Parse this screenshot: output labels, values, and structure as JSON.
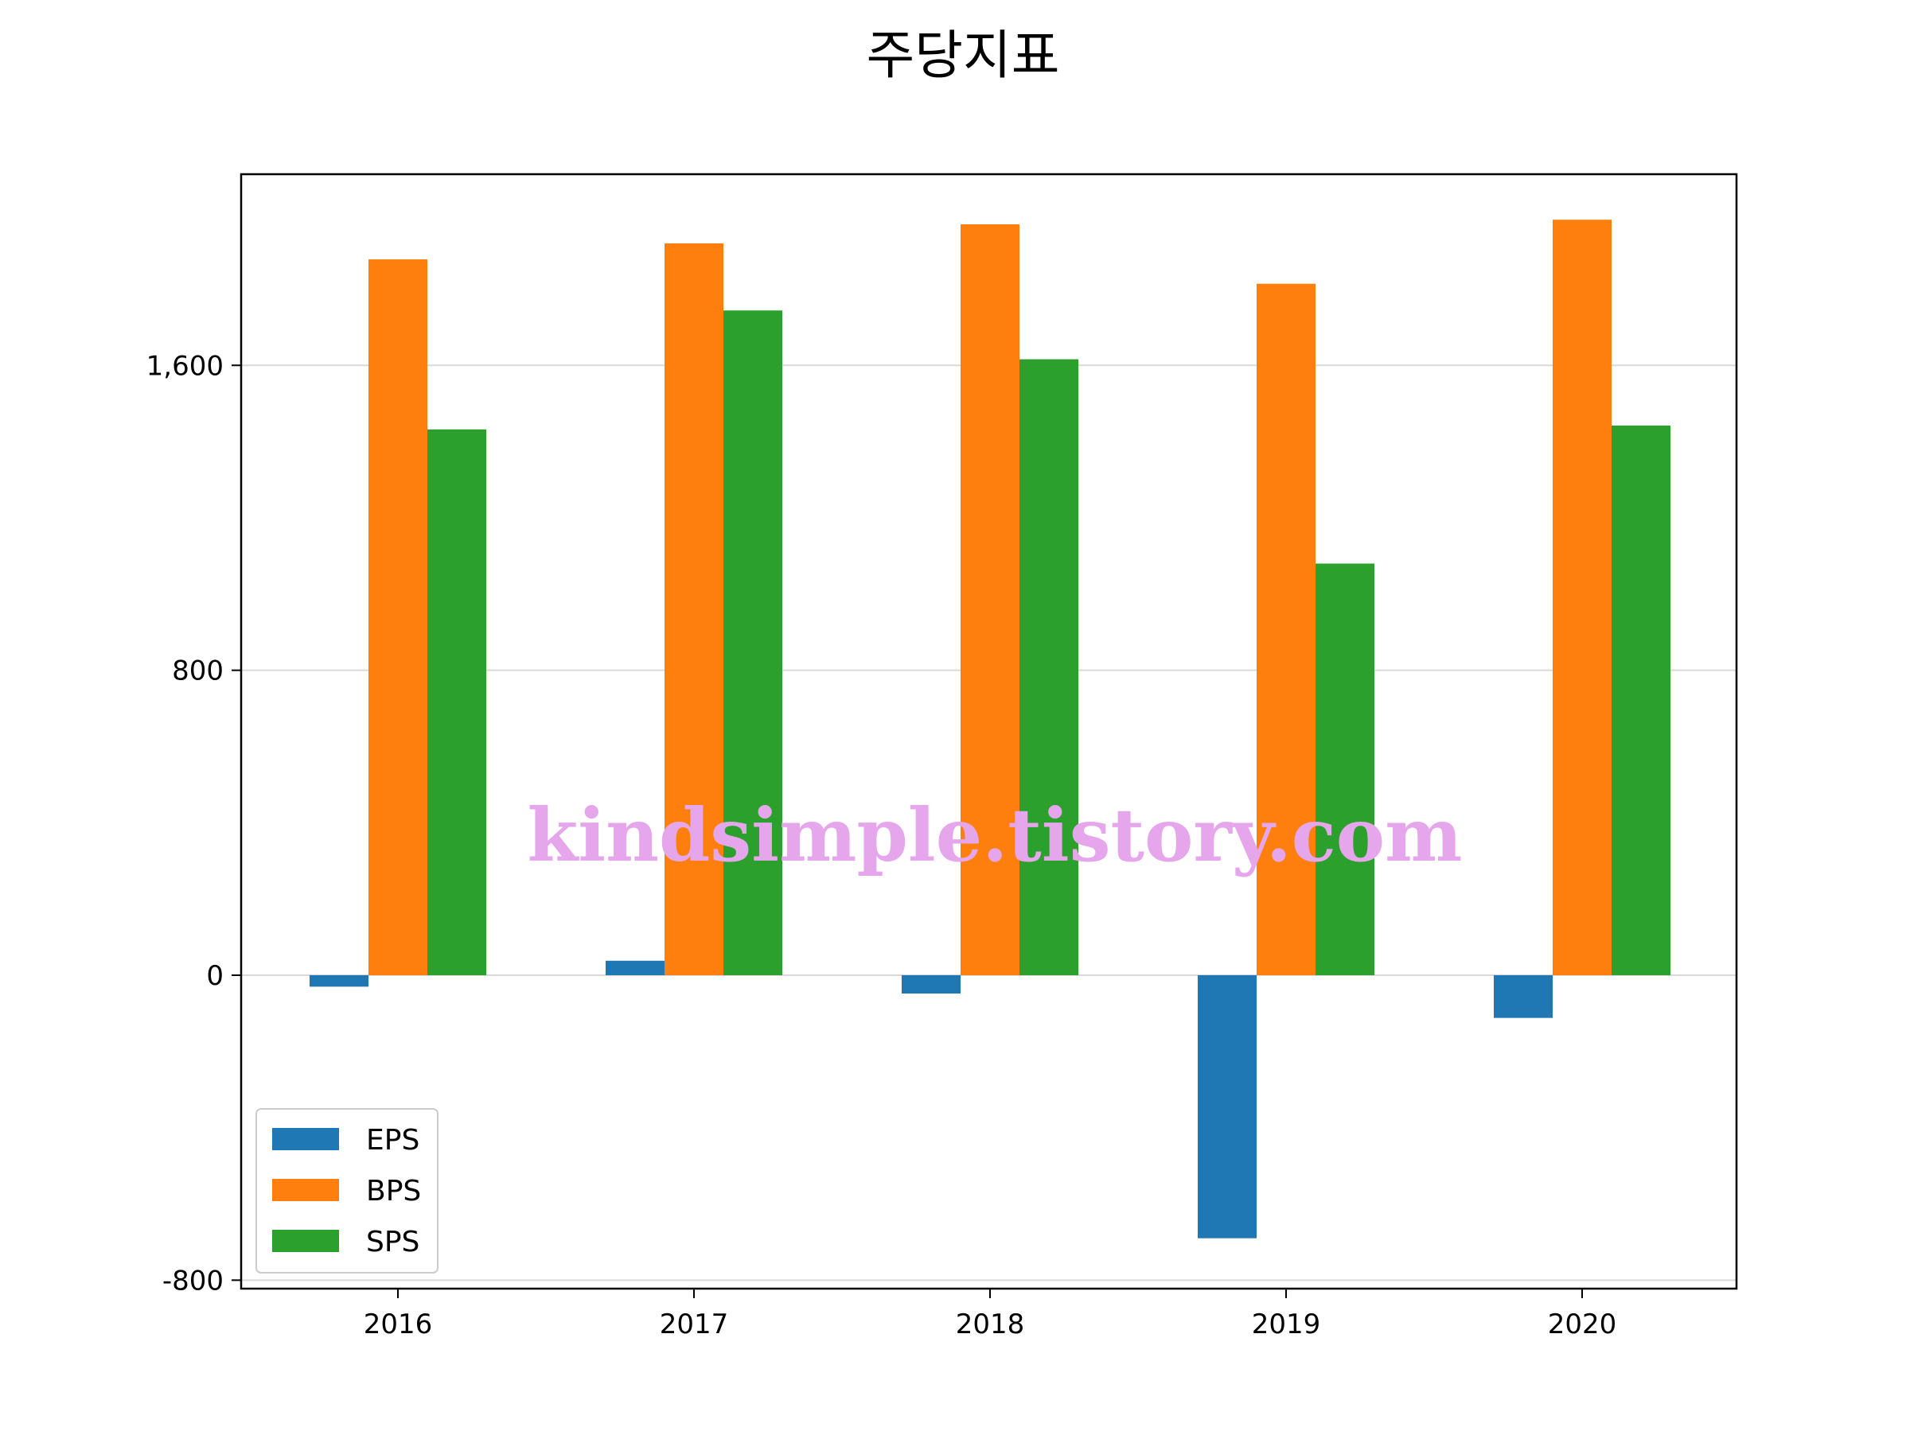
{
  "chart_data": {
    "type": "bar",
    "title": "주당지표",
    "xlabel": "",
    "ylabel": "",
    "categories": [
      "2016",
      "2017",
      "2018",
      "2019",
      "2020"
    ],
    "series": [
      {
        "name": "EPS",
        "color": "#1f77b4",
        "values": [
          -30,
          38,
          -48,
          -690,
          -112
        ]
      },
      {
        "name": "BPS",
        "color": "#ff7f0e",
        "values": [
          1878,
          1920,
          1970,
          1814,
          1982
        ]
      },
      {
        "name": "SPS",
        "color": "#2ca02c",
        "values": [
          1432,
          1744,
          1616,
          1080,
          1442
        ]
      }
    ],
    "ylim": [
      -820,
      2110
    ],
    "yticks": [
      -800,
      0,
      800,
      1600
    ],
    "ytick_labels": [
      "-800",
      "0",
      "800",
      "1,600"
    ],
    "grid": {
      "y": true,
      "x": false
    },
    "legend_position": "lower-left"
  },
  "watermark": "kindsimple.tistory.com"
}
